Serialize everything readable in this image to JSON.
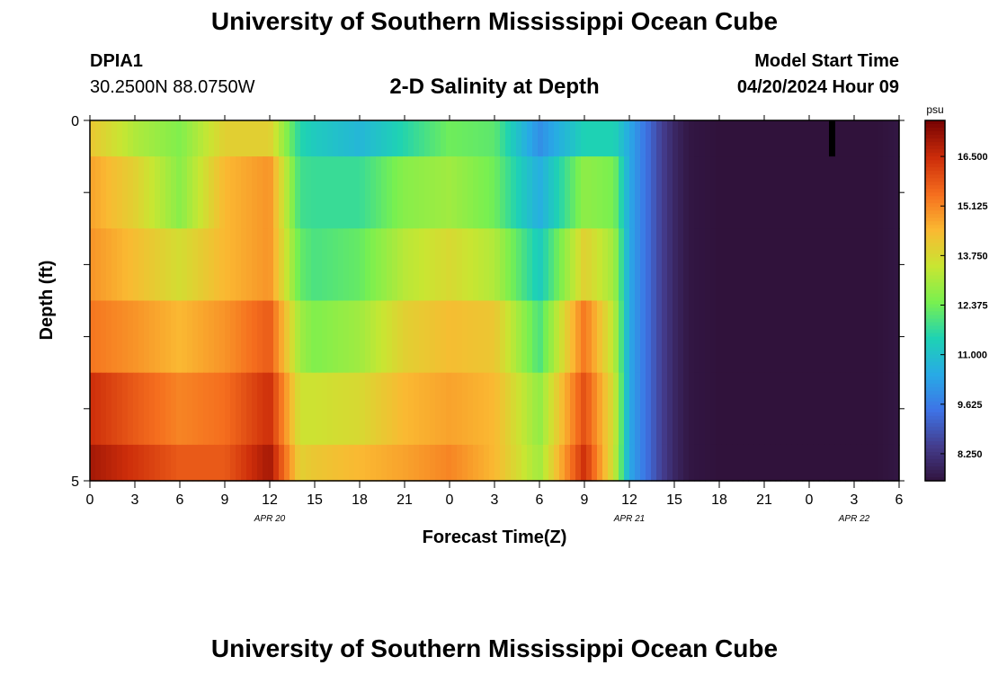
{
  "page": {
    "title_top": "University of Southern Mississippi Ocean Cube",
    "title_bottom": "University of Southern Mississippi Ocean Cube",
    "station": "DPIA1",
    "coords": "30.2500N  88.0750W",
    "subtitle": "2-D Salinity at Depth",
    "start_label": "Model Start Time",
    "start_value": "04/20/2024 Hour 09"
  },
  "chart_data": {
    "type": "heatmap",
    "title": "2-D Salinity at Depth",
    "xlabel": "Forecast Time(Z)",
    "ylabel": "Depth (ft)",
    "x_ticks": [
      "0",
      "3",
      "6",
      "9",
      "12",
      "15",
      "18",
      "21",
      "0",
      "3",
      "6",
      "9",
      "12",
      "15",
      "18",
      "21",
      "0",
      "3",
      "6"
    ],
    "date_labels": [
      {
        "label": "APR 20",
        "tick_index": 4
      },
      {
        "label": "APR 21",
        "tick_index": 12
      },
      {
        "label": "APR 22",
        "tick_index": 17
      }
    ],
    "y_ticks": [
      "0",
      "5"
    ],
    "ylim": [
      0,
      5
    ],
    "colorbar": {
      "unit": "psu",
      "min": 7.5,
      "max": 17.5,
      "tick_labels": [
        "16.500",
        "15.125",
        "13.750",
        "12.375",
        "11.000",
        "9.625",
        "8.250"
      ],
      "tick_values": [
        16.5,
        15.125,
        13.75,
        12.375,
        11.0,
        9.625,
        8.25
      ]
    },
    "row_depth_bounds_ft": [
      0,
      0.5,
      1.5,
      2.5,
      3.5,
      4.5,
      5.0
    ],
    "time_hours_since_start": [
      0,
      3,
      6,
      9,
      12,
      14,
      15,
      18,
      21,
      24,
      27,
      30,
      33,
      35,
      36,
      37,
      38,
      39,
      40,
      42,
      45,
      48,
      51,
      54
    ],
    "salinity": [
      [
        14.2,
        13.2,
        12.6,
        14.0,
        14.0,
        11.6,
        11.3,
        10.8,
        11.6,
        12.4,
        12.2,
        10.0,
        11.5,
        11.5,
        10.5,
        9.6,
        8.7,
        8.0,
        7.6,
        7.5,
        7.4,
        7.4,
        7.4,
        7.6
      ],
      [
        14.8,
        14.0,
        12.7,
        14.5,
        15.0,
        11.9,
        11.8,
        11.8,
        12.7,
        13.0,
        12.4,
        10.6,
        12.8,
        12.5,
        10.5,
        9.6,
        8.7,
        8.0,
        7.6,
        7.5,
        7.4,
        7.4,
        7.4,
        7.6
      ],
      [
        15.0,
        14.4,
        13.7,
        14.5,
        15.0,
        12.3,
        12.0,
        12.3,
        13.3,
        13.8,
        13.2,
        11.3,
        14.0,
        13.0,
        10.5,
        9.6,
        8.7,
        8.0,
        7.6,
        7.5,
        7.4,
        7.4,
        7.4,
        7.6
      ],
      [
        15.4,
        15.0,
        14.5,
        15.0,
        15.8,
        13.0,
        12.6,
        13.0,
        14.0,
        14.4,
        14.2,
        12.0,
        15.4,
        13.3,
        10.5,
        9.6,
        8.7,
        8.0,
        7.6,
        7.5,
        7.4,
        7.4,
        7.4,
        7.6
      ],
      [
        16.5,
        15.8,
        15.2,
        15.5,
        16.5,
        13.6,
        13.6,
        13.8,
        14.5,
        14.8,
        14.5,
        12.8,
        16.0,
        13.6,
        10.5,
        9.6,
        8.7,
        8.0,
        7.6,
        7.5,
        7.4,
        7.4,
        7.4,
        7.6
      ],
      [
        17.0,
        16.4,
        15.8,
        15.8,
        17.0,
        14.0,
        14.2,
        14.5,
        14.8,
        15.2,
        14.5,
        13.0,
        16.5,
        13.5,
        10.5,
        9.6,
        8.7,
        8.0,
        7.6,
        7.5,
        7.4,
        7.4,
        7.4,
        7.6
      ]
    ],
    "colors": {
      "frame": "#000000",
      "marker": "#000000"
    }
  }
}
